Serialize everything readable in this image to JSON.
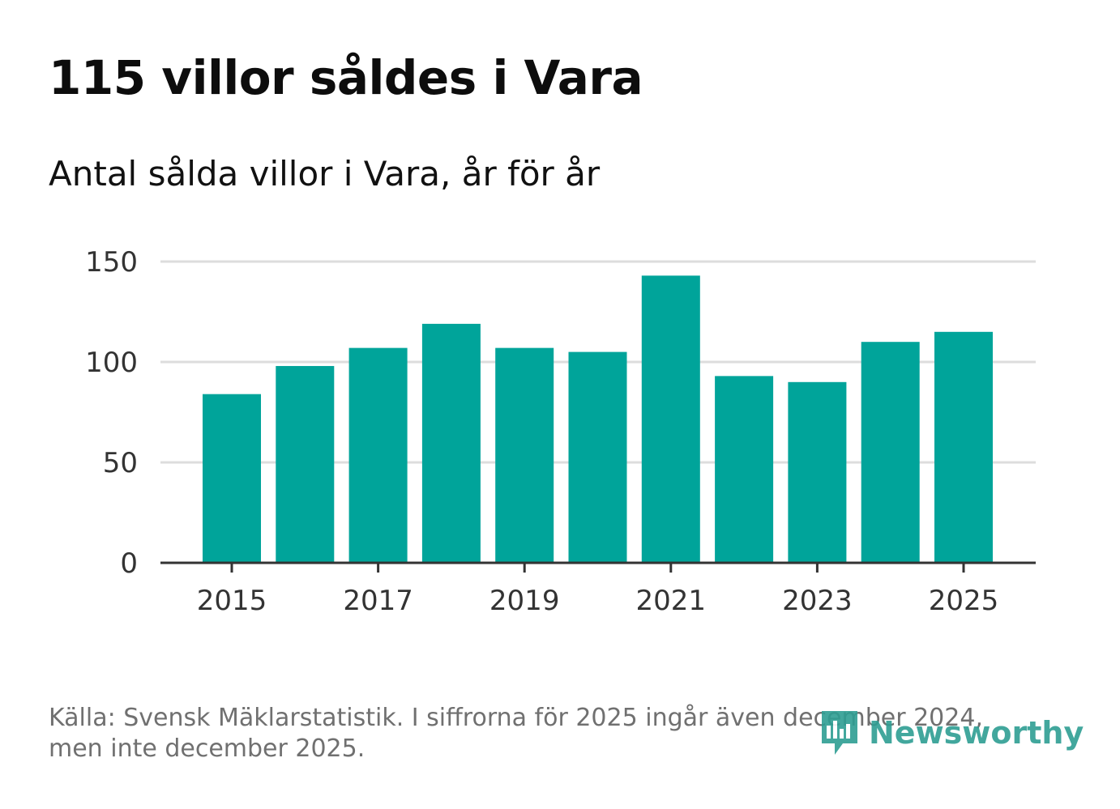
{
  "header": {
    "title": "115 villor såldes i Vara",
    "subtitle": "Antal sålda villor i Vara, år för år"
  },
  "footer": {
    "source_line1": "Källa: Svensk Mäklarstatistik. I siffrorna för 2025 ingår även december 2024,",
    "source_line2": "men inte december 2025.",
    "logo_text": "Newsworthy"
  },
  "colors": {
    "bar": "#00a49a",
    "grid": "#dddddd",
    "axis": "#333333",
    "logo": "#2e9e93"
  },
  "chart_data": {
    "type": "bar",
    "title": "115 villor såldes i Vara",
    "subtitle": "Antal sålda villor i Vara, år för år",
    "xlabel": "",
    "ylabel": "",
    "categories": [
      "2015",
      "2016",
      "2017",
      "2018",
      "2019",
      "2020",
      "2021",
      "2022",
      "2023",
      "2024",
      "2025"
    ],
    "values": [
      84,
      98,
      107,
      119,
      107,
      105,
      143,
      93,
      90,
      110,
      115
    ],
    "x_tick_labels": [
      "2015",
      "2017",
      "2019",
      "2021",
      "2023",
      "2025"
    ],
    "y_ticks": [
      0,
      50,
      100,
      150
    ],
    "ylim": [
      0,
      150
    ],
    "grid": true,
    "legend": "none"
  }
}
